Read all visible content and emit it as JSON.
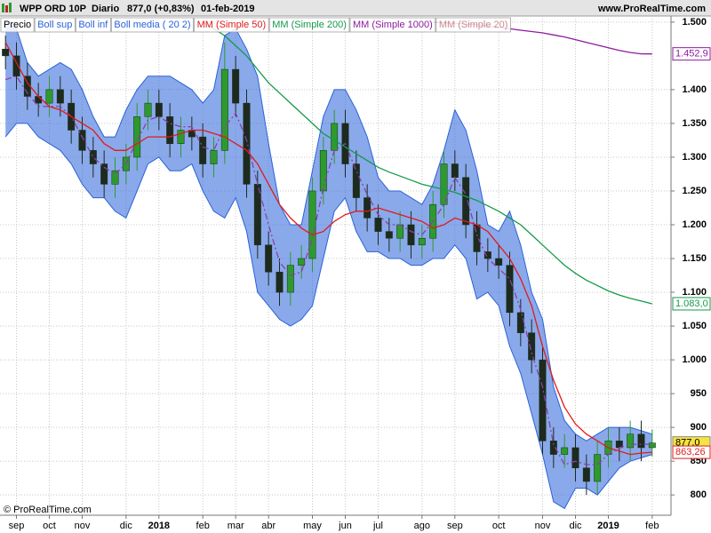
{
  "chart_data": {
    "type": "candlestick",
    "header": {
      "symbol": "WPP ORD 10P",
      "period": "Diario",
      "quote": "877,0 (+0,83%)",
      "date": "01-feb-2019",
      "site": "www.ProRealTime.com"
    },
    "watermark": "© ProRealTime.com",
    "categories": [
      null,
      "sep",
      null,
      null,
      "oct",
      null,
      null,
      "nov",
      null,
      null,
      null,
      "dic",
      null,
      null,
      "2018",
      null,
      null,
      null,
      "feb",
      null,
      null,
      "mar",
      null,
      null,
      "abr",
      null,
      null,
      null,
      "may",
      null,
      null,
      "jun",
      null,
      null,
      "jul",
      null,
      null,
      null,
      "ago",
      null,
      null,
      "sep",
      null,
      null,
      null,
      "oct",
      null,
      null,
      null,
      "nov",
      null,
      null,
      "dic",
      null,
      null,
      "2019",
      null,
      null,
      null,
      "feb"
    ],
    "bold_categories": [
      "2018",
      "2019"
    ],
    "ylim": [
      770,
      1509
    ],
    "yticks": [
      {
        "value": 1500,
        "label": "1.500"
      },
      {
        "value": 1400,
        "label": "1.400"
      },
      {
        "value": 1350,
        "label": "1.350"
      },
      {
        "value": 1300,
        "label": "1.300"
      },
      {
        "value": 1250,
        "label": "1.250"
      },
      {
        "value": 1200,
        "label": "1.200"
      },
      {
        "value": 1150,
        "label": "1.150"
      },
      {
        "value": 1100,
        "label": "1.100"
      },
      {
        "value": 1050,
        "label": "1.050"
      },
      {
        "value": 1000,
        "label": "1.000"
      },
      950,
      900,
      850,
      800
    ],
    "grid": true,
    "series": [
      {
        "name": "Precio",
        "color": "#000000",
        "up_color": "#2e9a2e",
        "down_color": "#1e2a1e",
        "last_value_label": "877,0",
        "label_bg": "#f5e342",
        "open": [
          1460,
          1450,
          1420,
          1390,
          1380,
          1400,
          1380,
          1340,
          1310,
          1290,
          1260,
          1280,
          1300,
          1360,
          1380,
          1360,
          1320,
          1340,
          1330,
          1290,
          1310,
          1430,
          1380,
          1260,
          1170,
          1130,
          1100,
          1140,
          1150,
          1250,
          1310,
          1350,
          1290,
          1240,
          1210,
          1190,
          1180,
          1200,
          1170,
          1180,
          1230,
          1290,
          1270,
          1200,
          1160,
          1150,
          1140,
          1070,
          1040,
          1000,
          880,
          860,
          870,
          840,
          820,
          860,
          880,
          870,
          890,
          870
        ],
        "high": [
          1480,
          1470,
          1440,
          1410,
          1420,
          1420,
          1400,
          1360,
          1330,
          1310,
          1300,
          1320,
          1380,
          1400,
          1400,
          1380,
          1360,
          1360,
          1350,
          1330,
          1470,
          1450,
          1400,
          1280,
          1190,
          1150,
          1160,
          1170,
          1270,
          1330,
          1370,
          1370,
          1310,
          1260,
          1230,
          1210,
          1220,
          1220,
          1200,
          1250,
          1310,
          1310,
          1290,
          1220,
          1180,
          1170,
          1160,
          1090,
          1060,
          1020,
          900,
          890,
          890,
          860,
          880,
          900,
          900,
          910,
          910,
          897
        ],
        "low": [
          1430,
          1400,
          1370,
          1360,
          1360,
          1360,
          1320,
          1290,
          1270,
          1240,
          1240,
          1260,
          1280,
          1340,
          1340,
          1300,
          1300,
          1310,
          1270,
          1270,
          1290,
          1360,
          1240,
          1150,
          1110,
          1080,
          1080,
          1120,
          1130,
          1230,
          1290,
          1270,
          1220,
          1190,
          1170,
          1160,
          1160,
          1150,
          1150,
          1160,
          1210,
          1250,
          1180,
          1140,
          1130,
          1120,
          1050,
          1020,
          980,
          860,
          840,
          840,
          820,
          800,
          800,
          840,
          850,
          850,
          850,
          857
        ],
        "close": [
          1450,
          1420,
          1390,
          1380,
          1400,
          1380,
          1340,
          1310,
          1290,
          1260,
          1280,
          1300,
          1360,
          1380,
          1360,
          1320,
          1340,
          1330,
          1290,
          1310,
          1430,
          1380,
          1260,
          1170,
          1130,
          1100,
          1140,
          1150,
          1250,
          1310,
          1350,
          1290,
          1240,
          1210,
          1190,
          1180,
          1200,
          1170,
          1180,
          1230,
          1290,
          1270,
          1200,
          1160,
          1150,
          1140,
          1070,
          1040,
          1000,
          880,
          860,
          870,
          840,
          820,
          860,
          880,
          870,
          890,
          870,
          877
        ]
      },
      {
        "name": "Boll sup",
        "color": "#2a62d8",
        "band": "upper",
        "values": [
          1500,
          1490,
          1440,
          1420,
          1430,
          1440,
          1430,
          1400,
          1360,
          1330,
          1330,
          1370,
          1400,
          1420,
          1420,
          1420,
          1410,
          1400,
          1380,
          1400,
          1480,
          1490,
          1460,
          1420,
          1320,
          1230,
          1200,
          1200,
          1280,
          1360,
          1400,
          1400,
          1370,
          1330,
          1270,
          1250,
          1250,
          1240,
          1230,
          1260,
          1310,
          1370,
          1340,
          1280,
          1200,
          1190,
          1220,
          1170,
          1100,
          1060,
          960,
          910,
          890,
          880,
          890,
          900,
          900,
          900,
          895,
          890
        ]
      },
      {
        "name": "Boll inf",
        "color": "#2a62d8",
        "band": "lower",
        "values": [
          1330,
          1350,
          1350,
          1330,
          1320,
          1310,
          1290,
          1260,
          1240,
          1240,
          1220,
          1210,
          1250,
          1290,
          1300,
          1280,
          1280,
          1290,
          1250,
          1220,
          1210,
          1240,
          1190,
          1100,
          1080,
          1060,
          1050,
          1060,
          1080,
          1150,
          1220,
          1240,
          1190,
          1160,
          1160,
          1150,
          1150,
          1140,
          1140,
          1150,
          1150,
          1170,
          1150,
          1090,
          1100,
          1080,
          1020,
          980,
          920,
          860,
          790,
          780,
          810,
          810,
          800,
          820,
          840,
          850,
          855,
          860
        ]
      },
      {
        "name": "Boll media ( 20 2)",
        "color": "#2a62d8",
        "line_color": "#8a3fa8",
        "dash": "7 3 2 3",
        "values": [
          1415,
          1420,
          1395,
          1375,
          1375,
          1375,
          1360,
          1330,
          1300,
          1285,
          1275,
          1290,
          1325,
          1355,
          1360,
          1350,
          1345,
          1345,
          1315,
          1310,
          1345,
          1365,
          1325,
          1260,
          1200,
          1145,
          1125,
          1130,
          1180,
          1255,
          1310,
          1320,
          1280,
          1245,
          1215,
          1200,
          1200,
          1190,
          1185,
          1205,
          1230,
          1270,
          1245,
          1185,
          1150,
          1135,
          1120,
          1075,
          1010,
          960,
          875,
          845,
          850,
          845,
          845,
          860,
          870,
          875,
          875,
          875
        ]
      },
      {
        "name": "MM (Simple 50)",
        "color": "#e01b1b",
        "last_value_label": "863,26",
        "values": [
          1470,
          1440,
          1410,
          1390,
          1375,
          1370,
          1360,
          1350,
          1340,
          1320,
          1310,
          1310,
          1320,
          1330,
          1330,
          1330,
          1335,
          1340,
          1340,
          1335,
          1330,
          1320,
          1310,
          1290,
          1260,
          1230,
          1210,
          1195,
          1185,
          1190,
          1205,
          1215,
          1220,
          1220,
          1225,
          1220,
          1215,
          1210,
          1205,
          1195,
          1200,
          1210,
          1205,
          1200,
          1190,
          1170,
          1150,
          1120,
          1080,
          1020,
          970,
          930,
          905,
          890,
          880,
          870,
          865,
          860,
          862,
          863.26
        ]
      },
      {
        "name": "MM (Simple 200)",
        "color": "#139a4a",
        "last_value_label": "1.083,0",
        "values": [
          null,
          null,
          null,
          null,
          null,
          null,
          null,
          null,
          null,
          null,
          null,
          null,
          null,
          null,
          null,
          null,
          null,
          null,
          1500,
          1490,
          1480,
          1465,
          1450,
          1430,
          1410,
          1395,
          1380,
          1365,
          1350,
          1335,
          1325,
          1315,
          1305,
          1295,
          1285,
          1278,
          1272,
          1266,
          1260,
          1256,
          1252,
          1248,
          1242,
          1236,
          1228,
          1220,
          1210,
          1200,
          1185,
          1170,
          1155,
          1140,
          1128,
          1118,
          1110,
          1102,
          1096,
          1091,
          1087,
          1083
        ]
      },
      {
        "name": "MM (Simple 1000)",
        "color": "#8e1a9e",
        "last_value_label": "1.452,9",
        "values": [
          null,
          null,
          null,
          null,
          null,
          null,
          null,
          null,
          null,
          null,
          null,
          null,
          null,
          null,
          null,
          null,
          null,
          null,
          null,
          null,
          null,
          null,
          null,
          null,
          null,
          null,
          null,
          null,
          null,
          null,
          null,
          null,
          null,
          null,
          null,
          null,
          null,
          null,
          null,
          1500,
          1499,
          1498,
          1497,
          1496,
          1494,
          1492,
          1490,
          1488,
          1486,
          1484,
          1481,
          1478,
          1474,
          1470,
          1466,
          1462,
          1458,
          1455,
          1453,
          1452.9
        ]
      },
      {
        "name": "MM (Simple 20)",
        "color": "#c98a8a",
        "visible": false
      }
    ]
  }
}
